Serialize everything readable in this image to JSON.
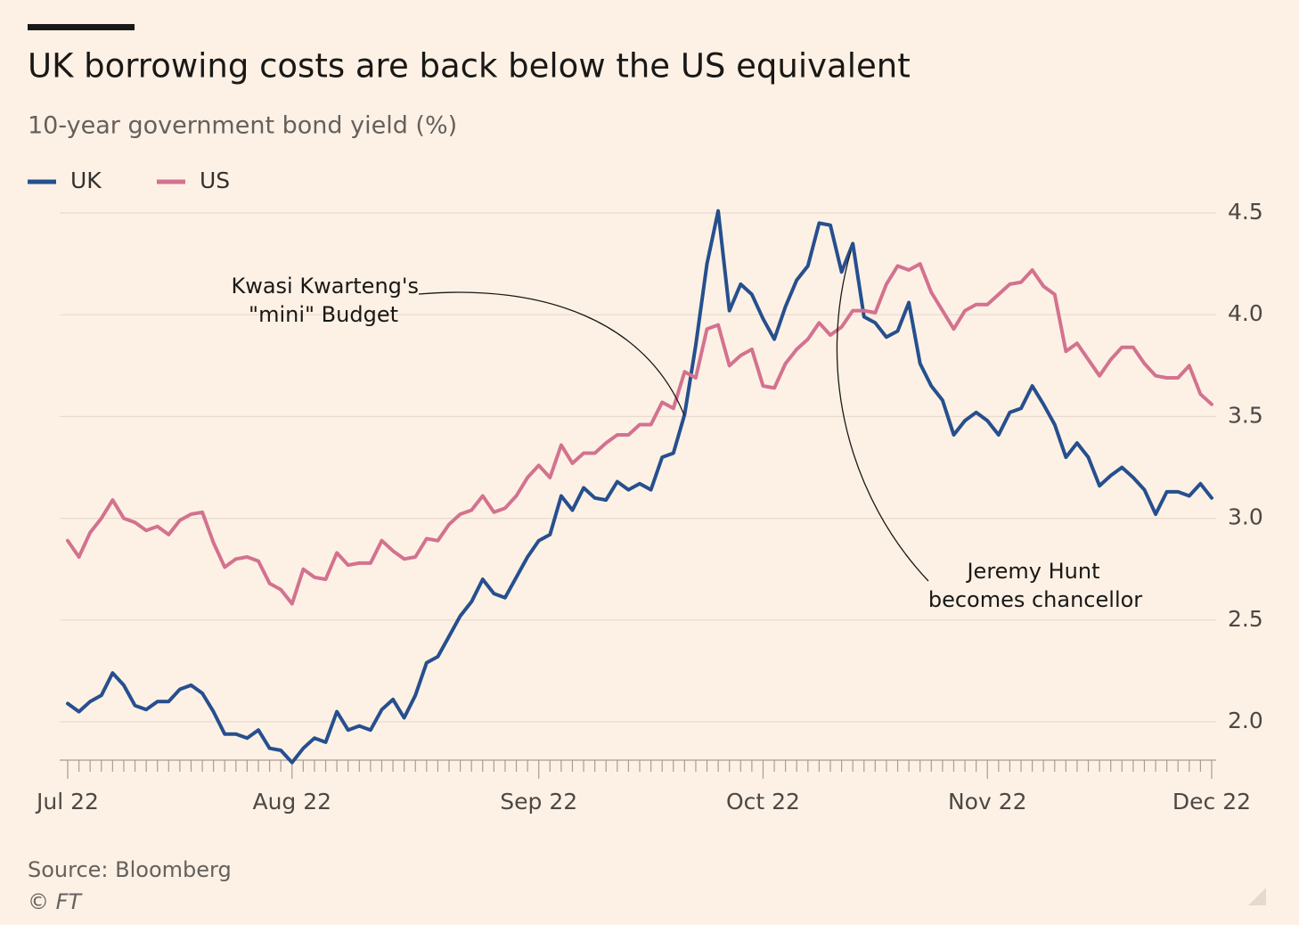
{
  "chart_data": {
    "type": "line",
    "title": "UK borrowing costs are back below the US equivalent",
    "subtitle": "10-year government bond yield (%)",
    "source": "Source: Bloomberg",
    "credit": "© FT",
    "categories": [
      "Jul 22",
      null,
      null,
      null,
      null,
      null,
      null,
      null,
      null,
      null,
      null,
      null,
      null,
      null,
      null,
      null,
      null,
      null,
      null,
      null,
      "Aug 22",
      null,
      null,
      null,
      null,
      null,
      null,
      null,
      null,
      null,
      null,
      null,
      null,
      null,
      null,
      null,
      null,
      null,
      null,
      null,
      null,
      null,
      "Sep 22",
      null,
      null,
      null,
      null,
      null,
      null,
      null,
      null,
      null,
      null,
      null,
      null,
      null,
      null,
      null,
      null,
      null,
      null,
      null,
      "Oct 22",
      null,
      null,
      null,
      null,
      null,
      null,
      null,
      null,
      null,
      null,
      null,
      null,
      null,
      null,
      null,
      null,
      null,
      null,
      null,
      "Nov 22",
      null,
      null,
      null,
      null,
      null,
      null,
      null,
      null,
      null,
      null,
      null,
      null,
      null,
      null,
      null,
      null,
      null,
      null,
      null,
      "Dec 22"
    ],
    "series": [
      {
        "name": "UK",
        "color": "#264f8e",
        "values": [
          2.09,
          2.05,
          2.1,
          2.13,
          2.24,
          2.18,
          2.08,
          2.06,
          2.1,
          2.1,
          2.16,
          2.18,
          2.14,
          2.05,
          1.94,
          1.94,
          1.92,
          1.96,
          1.87,
          1.86,
          1.8,
          1.87,
          1.92,
          1.9,
          2.05,
          1.96,
          1.98,
          1.96,
          2.06,
          2.11,
          2.02,
          2.13,
          2.29,
          2.32,
          2.42,
          2.52,
          2.59,
          2.7,
          2.63,
          2.61,
          2.71,
          2.81,
          2.89,
          2.92,
          3.11,
          3.04,
          3.15,
          3.1,
          3.09,
          3.18,
          3.14,
          3.17,
          3.14,
          3.3,
          3.32,
          3.51,
          3.85,
          4.25,
          4.51,
          4.02,
          4.15,
          4.1,
          3.98,
          3.88,
          4.04,
          4.17,
          4.24,
          4.45,
          4.44,
          4.21,
          4.35,
          3.99,
          3.96,
          3.89,
          3.92,
          4.06,
          3.76,
          3.65,
          3.58,
          3.41,
          3.48,
          3.52,
          3.48,
          3.41,
          3.52,
          3.54,
          3.65,
          3.56,
          3.46,
          3.3,
          3.37,
          3.3,
          3.16,
          3.21,
          3.25,
          3.2,
          3.14,
          3.02,
          3.13,
          3.13,
          3.11,
          3.17,
          3.1
        ]
      },
      {
        "name": "US",
        "color": "#d3728f",
        "values": [
          2.89,
          2.81,
          2.93,
          3.0,
          3.09,
          3.0,
          2.98,
          2.94,
          2.96,
          2.92,
          2.99,
          3.02,
          3.03,
          2.88,
          2.76,
          2.8,
          2.81,
          2.79,
          2.68,
          2.65,
          2.58,
          2.75,
          2.71,
          2.7,
          2.83,
          2.77,
          2.78,
          2.78,
          2.89,
          2.84,
          2.8,
          2.81,
          2.9,
          2.89,
          2.97,
          3.02,
          3.04,
          3.11,
          3.03,
          3.05,
          3.11,
          3.2,
          3.26,
          3.2,
          3.36,
          3.27,
          3.32,
          3.32,
          3.37,
          3.41,
          3.41,
          3.46,
          3.46,
          3.57,
          3.54,
          3.72,
          3.69,
          3.93,
          3.95,
          3.75,
          3.8,
          3.83,
          3.65,
          3.64,
          3.76,
          3.83,
          3.88,
          3.96,
          3.9,
          3.94,
          4.02,
          4.02,
          4.01,
          4.15,
          4.24,
          4.22,
          4.25,
          4.11,
          4.02,
          3.93,
          4.02,
          4.05,
          4.05,
          4.1,
          4.15,
          4.16,
          4.22,
          4.14,
          4.1,
          3.82,
          3.86,
          3.78,
          3.7,
          3.78,
          3.84,
          3.84,
          3.76,
          3.7,
          3.69,
          3.69,
          3.75,
          3.61,
          3.56
        ]
      }
    ],
    "ylim": [
      1.8,
      4.5
    ],
    "yticks": [
      {
        "value": 2.0,
        "label": "2.0"
      },
      2.5,
      {
        "value": 3.0,
        "label": "3.0"
      },
      3.5,
      {
        "value": 4.0,
        "label": "4.0"
      },
      4.5
    ],
    "grid": true,
    "annotations": [
      {
        "lines": [
          "Kwasi Kwarteng's",
          "\"mini\" Budget"
        ]
      },
      {
        "lines": [
          "Jeremy Hunt",
          "becomes chancellor"
        ]
      }
    ]
  }
}
